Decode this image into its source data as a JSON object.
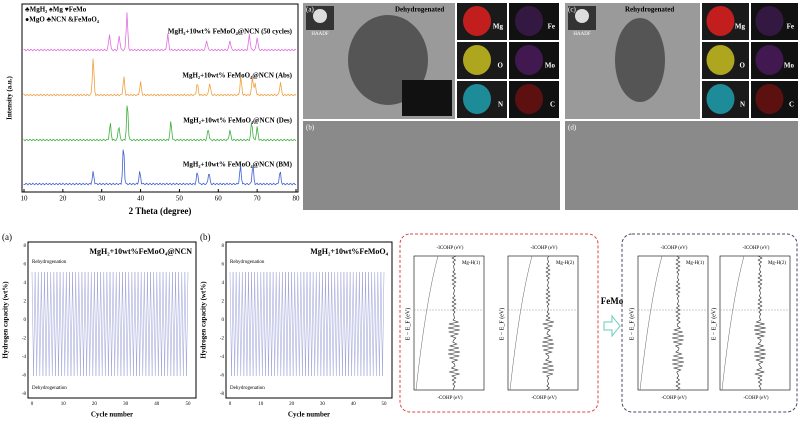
{
  "xrd": {
    "legend": [
      "♣MgH₂ ♠Mg ♥FeMo",
      "●MgO ♣NCN &FeMoO₄"
    ],
    "traces": [
      "MgH₂+10wt% FeMoO₄@NCN (50 cycles)",
      "MgH₂+10wt% FeMoO₄@NCN (Abs)",
      "MgH₂+10wt% FeMoO₄@NCN (Des)",
      "MgH₂+10wt% FeMoO₄@NCN (BM)"
    ],
    "y_label": "Intensity (a.u.)",
    "x_label": "2 Theta (degree)",
    "xticks": [
      "10",
      "20",
      "30",
      "40",
      "50",
      "60",
      "70",
      "80"
    ]
  },
  "tem_dehyd": {
    "panel": "(a)",
    "haadf": "HAADF",
    "title": "Dehydrogenated",
    "elements": [
      "Mg",
      "Fe",
      "O",
      "Mo",
      "N",
      "C"
    ],
    "hr_panel": "(b)"
  },
  "tem_rehyd": {
    "panel": "(c)",
    "haadf": "HAADF",
    "title": "Rehydrogenated",
    "elements": [
      "Mg",
      "Fe",
      "O",
      "Mo",
      "N",
      "C"
    ],
    "hr_panel": "(d)"
  },
  "cycling": [
    {
      "panel": "(a)",
      "title": "MgH₂+10wt%FeMoO₄@NCN",
      "top": "Rehydrogenation",
      "bottom": "Dehydrogenation",
      "y_label": "Hydrogen capacity (wt%)",
      "x_label": "Cycle number",
      "yticks": [
        "8",
        "6",
        "4",
        "2",
        "0",
        "-2",
        "-4",
        "-6",
        "-8"
      ],
      "xticks": [
        "0",
        "10",
        "20",
        "30",
        "40",
        "50"
      ]
    },
    {
      "panel": "(b)",
      "title": "MgH₂+10wt%FeMoO₄",
      "top": "Rehydrogenation",
      "bottom": "Dehydrogenation",
      "y_label": "Hydrogen capacity (wt%)",
      "x_label": "Cycle number",
      "yticks": [
        "8",
        "6",
        "4",
        "2",
        "0",
        "-2",
        "-4",
        "-6",
        "-8"
      ],
      "xticks": [
        "0",
        "10",
        "20",
        "30",
        "40",
        "50"
      ]
    }
  ],
  "cohp": {
    "top_label": "-ICOHP (eV)",
    "bottom_label": "-COHP (eV)",
    "y_label": "E − E_F (eV)",
    "bonds": [
      "Mg-H(1)",
      "Mg-H(2)"
    ],
    "arrow_label": "FeMo"
  }
}
